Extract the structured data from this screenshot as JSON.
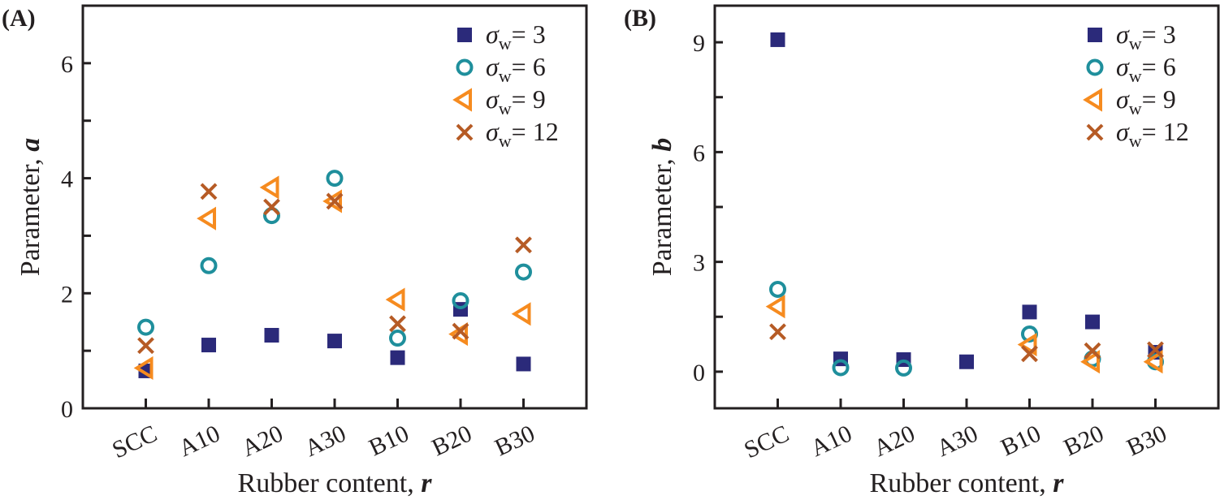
{
  "chart_data": [
    {
      "type": "scatter",
      "panel_label": "(A)",
      "xlabel": "Rubber content, ",
      "xlabel_var": "r",
      "ylabel": "Parameter, ",
      "ylabel_var": "a",
      "categories": [
        "SCC",
        "A10",
        "A20",
        "A30",
        "B10",
        "B20",
        "B30"
      ],
      "ylim": [
        0,
        7
      ],
      "yticks": [
        0,
        2,
        4,
        6
      ],
      "yminor_step": 1,
      "grid": false,
      "legend_position": "top-right",
      "series": [
        {
          "name": "σw = 3",
          "sym": "σ",
          "sub": "w",
          "eq": "= 3",
          "marker": "square",
          "color": "#2b2a7a",
          "values": [
            0.65,
            1.1,
            1.27,
            1.17,
            0.88,
            1.72,
            0.77
          ]
        },
        {
          "name": "σw = 6",
          "sym": "σ",
          "sub": "w",
          "eq": "= 6",
          "marker": "circle",
          "color": "#1f8f9c",
          "values": [
            1.41,
            2.48,
            3.35,
            4.0,
            1.22,
            1.87,
            2.37
          ]
        },
        {
          "name": "σw = 9",
          "sym": "σ",
          "sub": "w",
          "eq": "= 9",
          "marker": "triangle-left",
          "color": "#f68b1f",
          "values": [
            0.7,
            3.3,
            3.84,
            3.6,
            1.89,
            1.29,
            1.64
          ]
        },
        {
          "name": "σw = 12",
          "sym": "σ",
          "sub": "w",
          "eq": "= 12",
          "marker": "x",
          "color": "#b65b25",
          "values": [
            1.09,
            3.77,
            3.5,
            3.6,
            1.47,
            1.34,
            2.84
          ]
        }
      ]
    },
    {
      "type": "scatter",
      "panel_label": "(B)",
      "xlabel": "Rubber content, ",
      "xlabel_var": "r",
      "ylabel": "Parameter, ",
      "ylabel_var": "b",
      "categories": [
        "SCC",
        "A10",
        "A20",
        "A30",
        "B10",
        "B20",
        "B30"
      ],
      "ylim": [
        -1,
        10
      ],
      "yticks": [
        0,
        3,
        6,
        9
      ],
      "yminor_step": 1.5,
      "grid": false,
      "legend_position": "top-right",
      "series": [
        {
          "name": "σw = 3",
          "sym": "σ",
          "sub": "w",
          "eq": "= 3",
          "marker": "square",
          "color": "#2b2a7a",
          "values": [
            9.07,
            0.35,
            0.33,
            0.27,
            1.63,
            1.36,
            0.53
          ]
        },
        {
          "name": "σw = 6",
          "sym": "σ",
          "sub": "w",
          "eq": "= 6",
          "marker": "circle",
          "color": "#1f8f9c",
          "values": [
            2.25,
            0.11,
            0.1,
            null,
            1.03,
            0.35,
            0.27
          ]
        },
        {
          "name": "σw = 9",
          "sym": "σ",
          "sub": "w",
          "eq": "= 9",
          "marker": "triangle-left",
          "color": "#f68b1f",
          "values": [
            1.78,
            null,
            null,
            null,
            0.74,
            0.27,
            0.27
          ]
        },
        {
          "name": "σw = 12",
          "sym": "σ",
          "sub": "w",
          "eq": "= 12",
          "marker": "x",
          "color": "#b65b25",
          "values": [
            1.09,
            null,
            null,
            null,
            0.49,
            0.57,
            0.6
          ]
        }
      ]
    }
  ]
}
